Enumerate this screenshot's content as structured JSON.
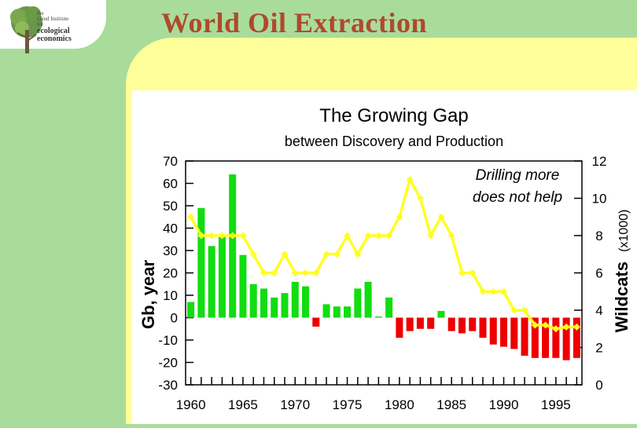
{
  "header": {
    "title": "World Oil Extraction",
    "logo": {
      "line1": "the",
      "line2": "Gund Institute",
      "line3": "for",
      "line4": "ecological",
      "line5": "economics"
    }
  },
  "chart_data": {
    "type": "bar",
    "title": "The Growing Gap",
    "subtitle": "between Discovery and Production",
    "ylabel": "Gb, year",
    "y2label": "Wildcats",
    "y2label_unit": "(x1000)",
    "annotation_line1": "Drilling more",
    "annotation_line2": "does not help",
    "ylim": [
      -30,
      70
    ],
    "y2lim": [
      0,
      12
    ],
    "y_ticks": [
      70,
      60,
      50,
      40,
      30,
      20,
      10,
      0,
      -10,
      -20,
      -30
    ],
    "y2_ticks": [
      12,
      10,
      8,
      6,
      4,
      2,
      0
    ],
    "x_tick_labels": [
      "1960",
      "1965",
      "1970",
      "1975",
      "1980",
      "1985",
      "1990",
      "1995"
    ],
    "x": [
      1960,
      1961,
      1962,
      1963,
      1964,
      1965,
      1966,
      1967,
      1968,
      1969,
      1970,
      1971,
      1972,
      1973,
      1974,
      1975,
      1976,
      1977,
      1978,
      1979,
      1980,
      1981,
      1982,
      1983,
      1984,
      1985,
      1986,
      1987,
      1988,
      1989,
      1990,
      1991,
      1992,
      1993,
      1994,
      1995,
      1996,
      1997
    ],
    "values": [
      7,
      49,
      32,
      36,
      64,
      28,
      15,
      13,
      9,
      11,
      16,
      14,
      -4,
      6,
      5,
      5,
      13,
      16,
      0.5,
      9,
      -9,
      -6,
      -5,
      -5,
      3,
      -6,
      -7,
      -6,
      -9,
      -12,
      -13,
      -14,
      -17,
      -18,
      -18,
      -18,
      -19,
      -18
    ],
    "colors": {
      "positive": "#11dd11",
      "negative": "#ee0000",
      "wildcats": "#ffff22"
    },
    "series": [
      {
        "name": "Wildcats",
        "axis": "right",
        "values": [
          9,
          8,
          8,
          8,
          8,
          8,
          7,
          6,
          6,
          7,
          6,
          6,
          6,
          7,
          7,
          8,
          7,
          8,
          8,
          8,
          9,
          11,
          10,
          8,
          9,
          8,
          6,
          6,
          5,
          5,
          5,
          4,
          4,
          3.2,
          3.2,
          3,
          3.1,
          3.1
        ]
      }
    ]
  }
}
